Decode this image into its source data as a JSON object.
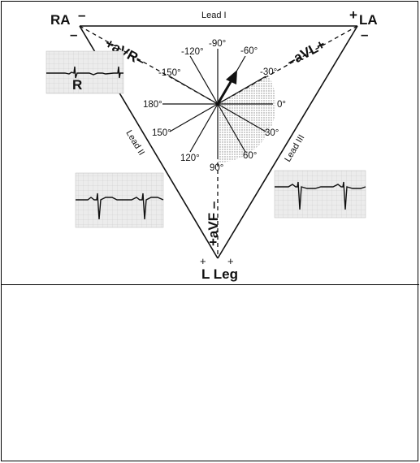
{
  "corners": {
    "ra": "RA",
    "la": "LA",
    "leg": "L Leg"
  },
  "leads": {
    "lead_i": "Lead I",
    "lead_ii": "Lead II",
    "lead_iii": "Lead III",
    "avr": "+aVR–",
    "avl": "–aVL+",
    "avf": "+aVF –"
  },
  "axis_labels": [
    "-90°",
    "-60°",
    "-30°",
    "0°",
    "30°",
    "60°",
    "90°",
    "120°",
    "150°",
    "180°",
    "-150°",
    "-120°"
  ],
  "ecg_marker": "R",
  "polarity": {
    "plus": "+",
    "minus": "–"
  },
  "colors": {
    "line": "#111111",
    "shade": "#999999"
  }
}
